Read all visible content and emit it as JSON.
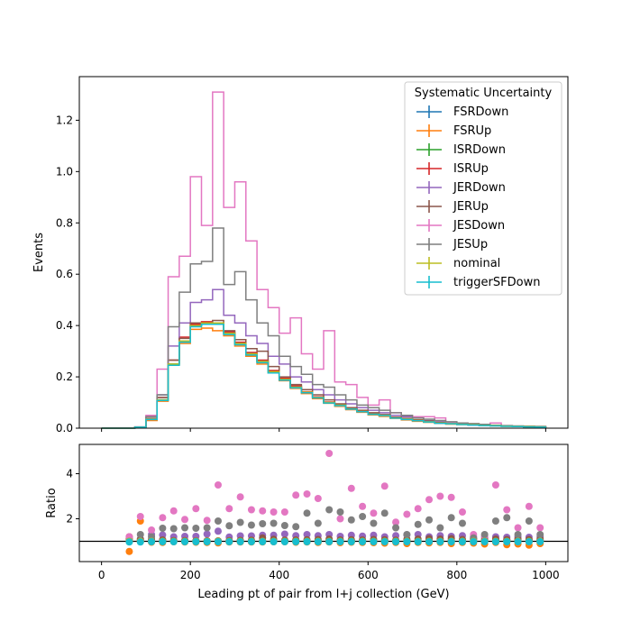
{
  "chart_data": [
    {
      "type": "step",
      "ylabel": "Events",
      "xlim": [
        -50,
        1050
      ],
      "ylim": [
        0,
        1.37
      ],
      "yticks": [
        0.0,
        0.2,
        0.4,
        0.6,
        0.8,
        1.0,
        1.2
      ],
      "ytick_labels": [
        "0.0",
        "0.2",
        "0.4",
        "0.6",
        "0.8",
        "1.0",
        "1.2"
      ],
      "legend": {
        "title": "Systematic Uncertainty",
        "placement": "top-right"
      },
      "bin_edges": [
        0,
        25,
        50,
        75,
        100,
        125,
        150,
        175,
        200,
        225,
        250,
        275,
        300,
        325,
        350,
        375,
        400,
        425,
        450,
        475,
        500,
        525,
        550,
        575,
        600,
        625,
        650,
        675,
        700,
        725,
        750,
        775,
        800,
        825,
        850,
        875,
        900,
        925,
        950,
        975,
        1000
      ],
      "series": [
        {
          "name": "FSRDown",
          "color": "#1f77b4",
          "values": [
            0,
            0,
            0,
            0.004,
            0.035,
            0.11,
            0.25,
            0.34,
            0.4,
            0.41,
            0.41,
            0.37,
            0.33,
            0.29,
            0.26,
            0.22,
            0.19,
            0.16,
            0.14,
            0.12,
            0.1,
            0.09,
            0.075,
            0.065,
            0.055,
            0.05,
            0.04,
            0.035,
            0.03,
            0.025,
            0.02,
            0.018,
            0.015,
            0.013,
            0.011,
            0.01,
            0.008,
            0.007,
            0.006,
            0.005
          ]
        },
        {
          "name": "FSRUp",
          "color": "#ff7f0e",
          "values": [
            0,
            0,
            0,
            0.003,
            0.03,
            0.105,
            0.245,
            0.33,
            0.385,
            0.39,
            0.38,
            0.36,
            0.32,
            0.28,
            0.25,
            0.215,
            0.185,
            0.155,
            0.135,
            0.115,
            0.097,
            0.085,
            0.072,
            0.062,
            0.052,
            0.046,
            0.038,
            0.032,
            0.027,
            0.023,
            0.019,
            0.016,
            0.014,
            0.012,
            0.01,
            0.009,
            0.007,
            0.006,
            0.005,
            0.004
          ]
        },
        {
          "name": "ISRDown",
          "color": "#2ca02c",
          "values": [
            0,
            0,
            0,
            0.004,
            0.035,
            0.11,
            0.25,
            0.34,
            0.4,
            0.41,
            0.41,
            0.37,
            0.33,
            0.29,
            0.26,
            0.22,
            0.19,
            0.16,
            0.14,
            0.12,
            0.1,
            0.09,
            0.075,
            0.065,
            0.055,
            0.05,
            0.04,
            0.035,
            0.03,
            0.025,
            0.02,
            0.018,
            0.015,
            0.013,
            0.011,
            0.01,
            0.008,
            0.007,
            0.006,
            0.005
          ]
        },
        {
          "name": "ISRUp",
          "color": "#d62728",
          "values": [
            0,
            0,
            0,
            0.004,
            0.037,
            0.12,
            0.265,
            0.355,
            0.405,
            0.415,
            0.41,
            0.375,
            0.335,
            0.295,
            0.265,
            0.225,
            0.195,
            0.165,
            0.142,
            0.122,
            0.102,
            0.092,
            0.077,
            0.067,
            0.057,
            0.051,
            0.041,
            0.036,
            0.031,
            0.026,
            0.021,
            0.019,
            0.016,
            0.014,
            0.012,
            0.01,
            0.008,
            0.007,
            0.006,
            0.005
          ]
        },
        {
          "name": "JERDown",
          "color": "#9467bd",
          "values": [
            0,
            0,
            0,
            0.004,
            0.045,
            0.13,
            0.32,
            0.41,
            0.49,
            0.5,
            0.54,
            0.44,
            0.41,
            0.36,
            0.33,
            0.28,
            0.25,
            0.2,
            0.18,
            0.15,
            0.13,
            0.11,
            0.095,
            0.08,
            0.07,
            0.06,
            0.05,
            0.045,
            0.04,
            0.03,
            0.025,
            0.022,
            0.018,
            0.015,
            0.013,
            0.011,
            0.009,
            0.008,
            0.007,
            0.006
          ]
        },
        {
          "name": "JERUp",
          "color": "#8c564b",
          "values": [
            0,
            0,
            0,
            0.004,
            0.038,
            0.12,
            0.265,
            0.35,
            0.41,
            0.41,
            0.42,
            0.38,
            0.345,
            0.31,
            0.3,
            0.24,
            0.2,
            0.17,
            0.15,
            0.13,
            0.11,
            0.095,
            0.08,
            0.07,
            0.06,
            0.053,
            0.043,
            0.038,
            0.033,
            0.028,
            0.022,
            0.02,
            0.017,
            0.014,
            0.012,
            0.01,
            0.008,
            0.007,
            0.006,
            0.005
          ]
        },
        {
          "name": "JESDown",
          "color": "#e377c2",
          "values": [
            0,
            0,
            0,
            0.005,
            0.05,
            0.23,
            0.59,
            0.67,
            0.98,
            0.79,
            1.31,
            0.86,
            0.96,
            0.73,
            0.54,
            0.47,
            0.37,
            0.43,
            0.29,
            0.23,
            0.38,
            0.18,
            0.17,
            0.12,
            0.09,
            0.11,
            0.06,
            0.05,
            0.045,
            0.045,
            0.04,
            0.02,
            0.015,
            0.012,
            0.01,
            0.02,
            0.009,
            0.008,
            0.007,
            0.006
          ]
        },
        {
          "name": "JESUp",
          "color": "#7f7f7f",
          "values": [
            0,
            0,
            0,
            0.005,
            0.045,
            0.13,
            0.395,
            0.53,
            0.64,
            0.65,
            0.78,
            0.56,
            0.61,
            0.5,
            0.41,
            0.36,
            0.28,
            0.24,
            0.21,
            0.17,
            0.16,
            0.13,
            0.11,
            0.09,
            0.08,
            0.07,
            0.06,
            0.05,
            0.04,
            0.035,
            0.03,
            0.025,
            0.02,
            0.018,
            0.015,
            0.012,
            0.01,
            0.009,
            0.008,
            0.007
          ]
        },
        {
          "name": "nominal",
          "color": "#bcbd22",
          "values": [
            0,
            0,
            0,
            0.004,
            0.035,
            0.11,
            0.25,
            0.34,
            0.4,
            0.41,
            0.41,
            0.37,
            0.33,
            0.29,
            0.26,
            0.22,
            0.19,
            0.16,
            0.14,
            0.12,
            0.1,
            0.09,
            0.075,
            0.065,
            0.055,
            0.05,
            0.04,
            0.035,
            0.03,
            0.025,
            0.02,
            0.018,
            0.015,
            0.013,
            0.011,
            0.01,
            0.008,
            0.007,
            0.006,
            0.005
          ]
        },
        {
          "name": "triggerSFDown",
          "color": "#17becf",
          "values": [
            0,
            0,
            0,
            0.004,
            0.034,
            0.108,
            0.245,
            0.335,
            0.395,
            0.405,
            0.405,
            0.365,
            0.325,
            0.285,
            0.255,
            0.215,
            0.187,
            0.157,
            0.138,
            0.118,
            0.098,
            0.088,
            0.074,
            0.064,
            0.054,
            0.049,
            0.039,
            0.034,
            0.029,
            0.024,
            0.019,
            0.017,
            0.014,
            0.012,
            0.01,
            0.009,
            0.007,
            0.006,
            0.005,
            0.004
          ]
        }
      ]
    },
    {
      "type": "scatter",
      "xlabel": "Leading pt of pair from l+j collection (GeV)",
      "ylabel": "Ratio",
      "xlim": [
        -50,
        1050
      ],
      "ylim": [
        0.1,
        5.3
      ],
      "reference_line": 1.0,
      "xticks": [
        0,
        200,
        400,
        600,
        800,
        1000
      ],
      "xtick_labels": [
        "0",
        "200",
        "400",
        "600",
        "800",
        "1000"
      ],
      "yticks": [
        2,
        4
      ],
      "ytick_labels": [
        "2",
        "4"
      ],
      "x": [
        62.5,
        87.5,
        112.5,
        137.5,
        162.5,
        187.5,
        212.5,
        237.5,
        262.5,
        287.5,
        312.5,
        337.5,
        362.5,
        387.5,
        412.5,
        437.5,
        462.5,
        487.5,
        512.5,
        537.5,
        562.5,
        587.5,
        612.5,
        637.5,
        662.5,
        687.5,
        712.5,
        737.5,
        762.5,
        787.5,
        812.5,
        837.5,
        862.5,
        887.5,
        912.5,
        937.5,
        962.5,
        987.5
      ],
      "series": [
        {
          "name": "FSRDown",
          "color": "#1f77b4",
          "values": [
            1,
            1,
            1,
            1,
            1,
            1,
            1,
            1,
            1,
            1,
            1,
            1,
            1,
            1,
            1,
            1,
            1,
            1,
            1,
            1,
            1,
            1,
            1,
            1,
            1,
            1,
            1,
            1,
            1,
            1,
            1,
            1,
            1,
            1,
            1,
            1,
            1,
            1
          ]
        },
        {
          "name": "FSRUp",
          "color": "#ff7f0e",
          "values": [
            0.55,
            1.9,
            0.96,
            0.95,
            0.98,
            0.97,
            0.96,
            0.95,
            0.93,
            0.97,
            0.97,
            0.97,
            0.97,
            0.98,
            0.98,
            0.96,
            0.97,
            0.95,
            0.97,
            0.94,
            0.96,
            0.95,
            0.94,
            0.92,
            0.95,
            0.9,
            0.95,
            0.93,
            0.95,
            0.9,
            0.95,
            0.92,
            0.88,
            0.95,
            0.85,
            0.88,
            0.83,
            0.9
          ]
        },
        {
          "name": "ISRDown",
          "color": "#2ca02c",
          "values": [
            1,
            1,
            1,
            1,
            1,
            1,
            1,
            1,
            1,
            1,
            1,
            1,
            1,
            1,
            1,
            1,
            1,
            1,
            1,
            1,
            1,
            1,
            1,
            1,
            1,
            1,
            1,
            1,
            1,
            1,
            1,
            1,
            1,
            1,
            1,
            1,
            1,
            1
          ]
        },
        {
          "name": "ISRUp",
          "color": "#d62728",
          "values": [
            1.2,
            1.0,
            1.05,
            1.06,
            1.05,
            1.04,
            1.02,
            1.01,
            1.0,
            1.02,
            1.02,
            1.02,
            1.03,
            1.02,
            1.02,
            1.04,
            1.02,
            1.02,
            1.03,
            1.01,
            1.02,
            1.04,
            1.02,
            1.0,
            1.02,
            1.03,
            1.02,
            1.04,
            1.03,
            1.05,
            1.04,
            1.1,
            1.05,
            1.08,
            1.07,
            1.06,
            1.06,
            1.05
          ]
        },
        {
          "name": "JERDown",
          "color": "#9467bd",
          "values": [
            1.0,
            1.1,
            1.3,
            1.28,
            1.2,
            1.22,
            1.22,
            1.32,
            1.45,
            1.19,
            1.24,
            1.24,
            1.27,
            1.27,
            1.32,
            1.25,
            1.3,
            1.25,
            1.3,
            1.22,
            1.27,
            1.23,
            1.27,
            1.2,
            1.25,
            1.29,
            1.3,
            1.2,
            1.25,
            1.22,
            1.25,
            1.2,
            1.18,
            1.2,
            1.18,
            1.2,
            1.18,
            1.2
          ]
        },
        {
          "name": "JERUp",
          "color": "#8c564b",
          "values": [
            1.1,
            1.08,
            1.09,
            1.06,
            1.03,
            1.03,
            1.02,
            1.02,
            1.02,
            1.03,
            1.04,
            1.05,
            1.15,
            1.09,
            1.05,
            1.06,
            1.07,
            1.08,
            1.1,
            1.06,
            1.07,
            1.06,
            1.08,
            1.07,
            1.05,
            1.09,
            1.1,
            1.12,
            1.1,
            1.12,
            1.08,
            1.1,
            1.09,
            1.1,
            1.08,
            1.1,
            1.08,
            1.1
          ]
        },
        {
          "name": "JESDown",
          "color": "#e377c2",
          "values": [
            1.2,
            2.1,
            1.5,
            2.05,
            2.35,
            1.97,
            2.45,
            1.93,
            3.5,
            2.45,
            2.97,
            2.4,
            2.35,
            2.3,
            2.3,
            3.05,
            3.1,
            2.9,
            4.9,
            2.0,
            3.35,
            2.55,
            2.25,
            3.45,
            1.85,
            2.2,
            2.45,
            2.85,
            3.0,
            2.95,
            2.3,
            1.3,
            1.25,
            3.5,
            2.4,
            1.6,
            2.55,
            1.6
          ]
        },
        {
          "name": "JESUp",
          "color": "#7f7f7f",
          "values": [
            1.0,
            1.3,
            1.2,
            1.58,
            1.56,
            1.6,
            1.58,
            1.6,
            1.9,
            1.69,
            1.84,
            1.72,
            1.78,
            1.8,
            1.7,
            1.65,
            2.25,
            1.8,
            2.4,
            2.3,
            1.95,
            2.1,
            1.8,
            2.25,
            1.6,
            1.3,
            1.75,
            1.95,
            1.6,
            2.05,
            1.8,
            1.15,
            1.3,
            1.9,
            2.05,
            1.3,
            1.9,
            1.3
          ]
        },
        {
          "name": "nominal",
          "color": "#bcbd22",
          "values": [
            1,
            1,
            1,
            1,
            1,
            1,
            1,
            1,
            1,
            1,
            1,
            1,
            1,
            1,
            1,
            1,
            1,
            1,
            1,
            1,
            1,
            1,
            1,
            1,
            1,
            1,
            1,
            1,
            1,
            1,
            1,
            1,
            1,
            1,
            1,
            1,
            1,
            1
          ]
        },
        {
          "name": "triggerSFDown",
          "color": "#17becf",
          "values": [
            0.97,
            0.97,
            0.98,
            0.98,
            0.98,
            0.98,
            0.98,
            0.98,
            0.98,
            0.98,
            0.98,
            0.98,
            0.98,
            0.98,
            0.98,
            0.98,
            0.98,
            0.98,
            0.98,
            0.98,
            0.98,
            0.98,
            0.98,
            0.98,
            0.98,
            0.98,
            0.98,
            0.98,
            0.98,
            0.98,
            0.98,
            0.98,
            0.98,
            0.98,
            0.98,
            0.98,
            0.98,
            0.98
          ]
        }
      ]
    }
  ]
}
